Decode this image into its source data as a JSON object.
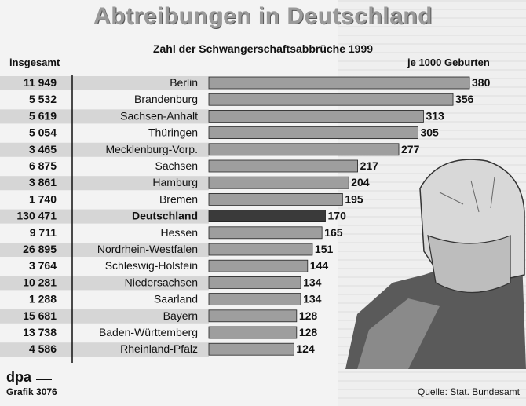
{
  "title": "Abtreibungen in Deutschland",
  "subtitle": "Zahl der Schwangerschaftsabbrüche 1999",
  "left_header": "insgesamt",
  "right_header": "je 1000 Geburten",
  "source": "Quelle: Stat. Bundesamt",
  "brand": "dpa",
  "graphic_id": "Grafik 3076",
  "highlight_state": "Deutschland",
  "colors": {
    "bar": "#9e9e9e",
    "bar_highlight": "#3a3a3a",
    "row_stripe": "#c9c9c9",
    "text": "#111111"
  },
  "chart_data": {
    "type": "bar",
    "orientation": "horizontal",
    "categories": [
      "Berlin",
      "Brandenburg",
      "Sachsen-Anhalt",
      "Thüringen",
      "Mecklenburg-Vorp.",
      "Sachsen",
      "Hamburg",
      "Bremen",
      "Deutschland",
      "Hessen",
      "Nordrhein-Westfalen",
      "Schleswig-Holstein",
      "Niedersachsen",
      "Saarland",
      "Bayern",
      "Baden-Württemberg",
      "Rheinland-Pfalz"
    ],
    "totals": [
      "11 949",
      "5 532",
      "5 619",
      "5 054",
      "3 465",
      "6 875",
      "3 861",
      "1 740",
      "130 471",
      "9 711",
      "26 895",
      "3 764",
      "10 281",
      "1 288",
      "15 681",
      "13 738",
      "4 586"
    ],
    "series": [
      {
        "name": "je 1000 Geburten",
        "values": [
          380,
          356,
          313,
          305,
          277,
          217,
          204,
          195,
          170,
          165,
          151,
          144,
          134,
          134,
          128,
          128,
          124
        ]
      }
    ],
    "xlim": [
      0,
      400
    ],
    "grid": false
  }
}
